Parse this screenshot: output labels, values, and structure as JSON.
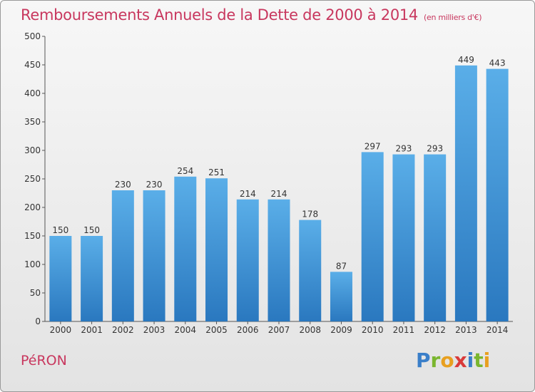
{
  "header": {
    "title": "Remboursements Annuels de la Dette de 2000 à 2014",
    "subtitle": "(en milliers d'€)"
  },
  "footer": {
    "commune": "PéRON",
    "brand_letters": [
      {
        "ch": "P",
        "color": "#3a7fc9"
      },
      {
        "ch": "r",
        "color": "#7ab62f"
      },
      {
        "ch": "o",
        "color": "#e8a020"
      },
      {
        "ch": "x",
        "color": "#d93a3a"
      },
      {
        "ch": "i",
        "color": "#3a7fc9"
      },
      {
        "ch": "t",
        "color": "#7ab62f"
      },
      {
        "ch": "i",
        "color": "#e8a020"
      }
    ]
  },
  "chart_data": {
    "type": "bar",
    "title": "Remboursements Annuels de la Dette de 2000 à 2014",
    "subtitle": "(en milliers d'€)",
    "categories": [
      "2000",
      "2001",
      "2002",
      "2003",
      "2004",
      "2005",
      "2006",
      "2007",
      "2008",
      "2009",
      "2010",
      "2011",
      "2012",
      "2013",
      "2014"
    ],
    "values": [
      150,
      150,
      230,
      230,
      254,
      251,
      214,
      214,
      178,
      87,
      297,
      293,
      293,
      449,
      443
    ],
    "ylim": [
      0,
      500
    ],
    "yticks": [
      0,
      50,
      100,
      150,
      200,
      250,
      300,
      350,
      400,
      450,
      500
    ],
    "grid": false,
    "colors": {
      "bar_top": "#5aaee8",
      "bar_bottom": "#2a78bf",
      "axis": "#555555",
      "text": "#333333"
    }
  }
}
